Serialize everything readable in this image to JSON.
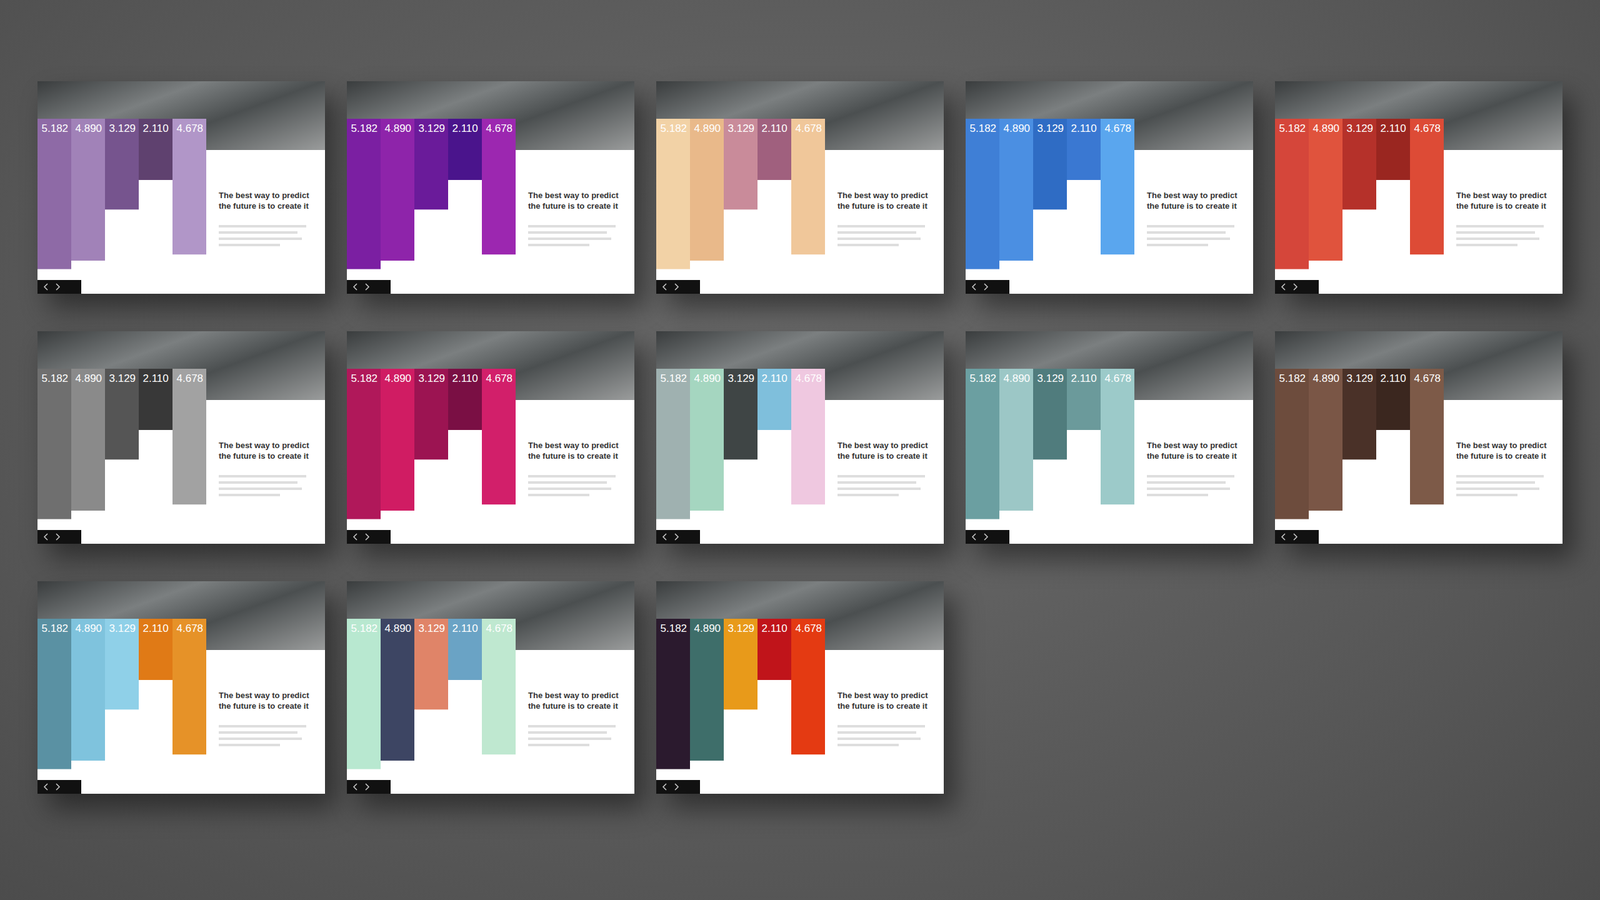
{
  "chart_data": [
    {
      "type": "bar",
      "title": "The best way to predict the future is to create it",
      "categories": [
        null,
        null,
        null,
        null,
        null
      ],
      "values": [
        5.182,
        4.89,
        3.129,
        2.11,
        4.678
      ],
      "value_labels": [
        "5.182",
        "4.890",
        "3.129",
        "2.110",
        "4.678"
      ],
      "colors": [
        "#8e6aa6",
        "#a182b8",
        "#76548e",
        "#5f416f",
        "#b196c8"
      ],
      "ylim": [
        0,
        5.6
      ],
      "yticks": [],
      "grid": false,
      "data_labels": true,
      "tick_labels": false
    },
    {
      "type": "bar",
      "title": "The best way to predict the future is to create it",
      "categories": [
        null,
        null,
        null,
        null,
        null
      ],
      "values": [
        5.182,
        4.89,
        3.129,
        2.11,
        4.678
      ],
      "value_labels": [
        "5.182",
        "4.890",
        "3.129",
        "2.110",
        "4.678"
      ],
      "colors": [
        "#7b1fa2",
        "#8e24aa",
        "#6a1b9a",
        "#4a148c",
        "#9c27b0"
      ],
      "ylim": [
        0,
        5.6
      ],
      "yticks": [],
      "grid": false,
      "data_labels": true,
      "tick_labels": false
    },
    {
      "type": "bar",
      "title": "The best way to predict the future is to create it",
      "categories": [
        null,
        null,
        null,
        null,
        null
      ],
      "values": [
        5.182,
        4.89,
        3.129,
        2.11,
        4.678
      ],
      "value_labels": [
        "5.182",
        "4.890",
        "3.129",
        "2.110",
        "4.678"
      ],
      "colors": [
        "#f2d2a6",
        "#e9b98a",
        "#c98b9a",
        "#a0607e",
        "#f0c79a"
      ],
      "ylim": [
        0,
        5.6
      ],
      "yticks": [],
      "grid": false,
      "data_labels": true,
      "tick_labels": false
    },
    {
      "type": "bar",
      "title": "The best way to predict the future is to create it",
      "categories": [
        null,
        null,
        null,
        null,
        null
      ],
      "values": [
        5.182,
        4.89,
        3.129,
        2.11,
        4.678
      ],
      "value_labels": [
        "5.182",
        "4.890",
        "3.129",
        "2.110",
        "4.678"
      ],
      "colors": [
        "#3f7fd6",
        "#4b8fe2",
        "#2f6cc4",
        "#3a78d2",
        "#5aa6ee"
      ],
      "ylim": [
        0,
        5.6
      ],
      "yticks": [],
      "grid": false,
      "data_labels": true,
      "tick_labels": false
    },
    {
      "type": "bar",
      "title": "The best way to predict the future is to create it",
      "categories": [
        null,
        null,
        null,
        null,
        null
      ],
      "values": [
        5.182,
        4.89,
        3.129,
        2.11,
        4.678
      ],
      "value_labels": [
        "5.182",
        "4.890",
        "3.129",
        "2.110",
        "4.678"
      ],
      "colors": [
        "#d5463a",
        "#e0533d",
        "#b5312a",
        "#9a2620",
        "#dd4b36"
      ],
      "ylim": [
        0,
        5.6
      ],
      "yticks": [],
      "grid": false,
      "data_labels": true,
      "tick_labels": false
    },
    {
      "type": "bar",
      "title": "The best way to predict the future is to create it",
      "categories": [
        null,
        null,
        null,
        null,
        null
      ],
      "values": [
        5.182,
        4.89,
        3.129,
        2.11,
        4.678
      ],
      "value_labels": [
        "5.182",
        "4.890",
        "3.129",
        "2.110",
        "4.678"
      ],
      "colors": [
        "#6f6f6f",
        "#8a8a8a",
        "#555555",
        "#383838",
        "#a2a2a2"
      ],
      "ylim": [
        0,
        5.6
      ],
      "yticks": [],
      "grid": false,
      "data_labels": true,
      "tick_labels": false
    },
    {
      "type": "bar",
      "title": "The best way to predict the future is to create it",
      "categories": [
        null,
        null,
        null,
        null,
        null
      ],
      "values": [
        5.182,
        4.89,
        3.129,
        2.11,
        4.678
      ],
      "value_labels": [
        "5.182",
        "4.890",
        "3.129",
        "2.110",
        "4.678"
      ],
      "colors": [
        "#b0185a",
        "#d01c63",
        "#9c1452",
        "#7a0f44",
        "#d21f6a"
      ],
      "ylim": [
        0,
        5.6
      ],
      "yticks": [],
      "grid": false,
      "data_labels": true,
      "tick_labels": false
    },
    {
      "type": "bar",
      "title": "The best way to predict the future is to create it",
      "categories": [
        null,
        null,
        null,
        null,
        null
      ],
      "values": [
        5.182,
        4.89,
        3.129,
        2.11,
        4.678
      ],
      "value_labels": [
        "5.182",
        "4.890",
        "3.129",
        "2.110",
        "4.678"
      ],
      "colors": [
        "#9fb1b0",
        "#a5d6c0",
        "#3f4545",
        "#7fbfdc",
        "#efc8e0"
      ],
      "ylim": [
        0,
        5.6
      ],
      "yticks": [],
      "grid": false,
      "data_labels": true,
      "tick_labels": false
    },
    {
      "type": "bar",
      "title": "The best way to predict the future is to create it",
      "categories": [
        null,
        null,
        null,
        null,
        null
      ],
      "values": [
        5.182,
        4.89,
        3.129,
        2.11,
        4.678
      ],
      "value_labels": [
        "5.182",
        "4.890",
        "3.129",
        "2.110",
        "4.678"
      ],
      "colors": [
        "#6b9fa1",
        "#9cc7c6",
        "#507c7d",
        "#6b9a9b",
        "#9ccac9"
      ],
      "ylim": [
        0,
        5.6
      ],
      "yticks": [],
      "grid": false,
      "data_labels": true,
      "tick_labels": false
    },
    {
      "type": "bar",
      "title": "The best way to predict the future is to create it",
      "categories": [
        null,
        null,
        null,
        null,
        null
      ],
      "values": [
        5.182,
        4.89,
        3.129,
        2.11,
        4.678
      ],
      "value_labels": [
        "5.182",
        "4.890",
        "3.129",
        "2.110",
        "4.678"
      ],
      "colors": [
        "#6d4c3d",
        "#7a5646",
        "#4a3128",
        "#3b271f",
        "#7d5a48"
      ],
      "ylim": [
        0,
        5.6
      ],
      "yticks": [],
      "grid": false,
      "data_labels": true,
      "tick_labels": false
    },
    {
      "type": "bar",
      "title": "The best way to predict the future is to create it",
      "categories": [
        null,
        null,
        null,
        null,
        null
      ],
      "values": [
        5.182,
        4.89,
        3.129,
        2.11,
        4.678
      ],
      "value_labels": [
        "5.182",
        "4.890",
        "3.129",
        "2.110",
        "4.678"
      ],
      "colors": [
        "#5a91a3",
        "#7fc3dd",
        "#8fd0e8",
        "#e07a16",
        "#e69228"
      ],
      "ylim": [
        0,
        5.6
      ],
      "yticks": [],
      "grid": false,
      "data_labels": true,
      "tick_labels": false
    },
    {
      "type": "bar",
      "title": "The best way to predict the future is to create it",
      "categories": [
        null,
        null,
        null,
        null,
        null
      ],
      "values": [
        5.182,
        4.89,
        3.129,
        2.11,
        4.678
      ],
      "value_labels": [
        "5.182",
        "4.890",
        "3.129",
        "2.110",
        "4.678"
      ],
      "colors": [
        "#b8e8d0",
        "#3d4563",
        "#e08468",
        "#6aa3c5",
        "#bfe8d0"
      ],
      "ylim": [
        0,
        5.6
      ],
      "yticks": [],
      "grid": false,
      "data_labels": true,
      "tick_labels": false
    },
    {
      "type": "bar",
      "title": "The best way to predict the future is to create it",
      "categories": [
        null,
        null,
        null,
        null,
        null
      ],
      "values": [
        5.182,
        4.89,
        3.129,
        2.11,
        4.678
      ],
      "value_labels": [
        "5.182",
        "4.890",
        "3.129",
        "2.110",
        "4.678"
      ],
      "colors": [
        "#2b1a2e",
        "#3e6e6a",
        "#e89a1a",
        "#c0141a",
        "#e43a12"
      ],
      "ylim": [
        0,
        5.6
      ],
      "yticks": [],
      "grid": false,
      "data_labels": true,
      "tick_labels": false
    }
  ]
}
